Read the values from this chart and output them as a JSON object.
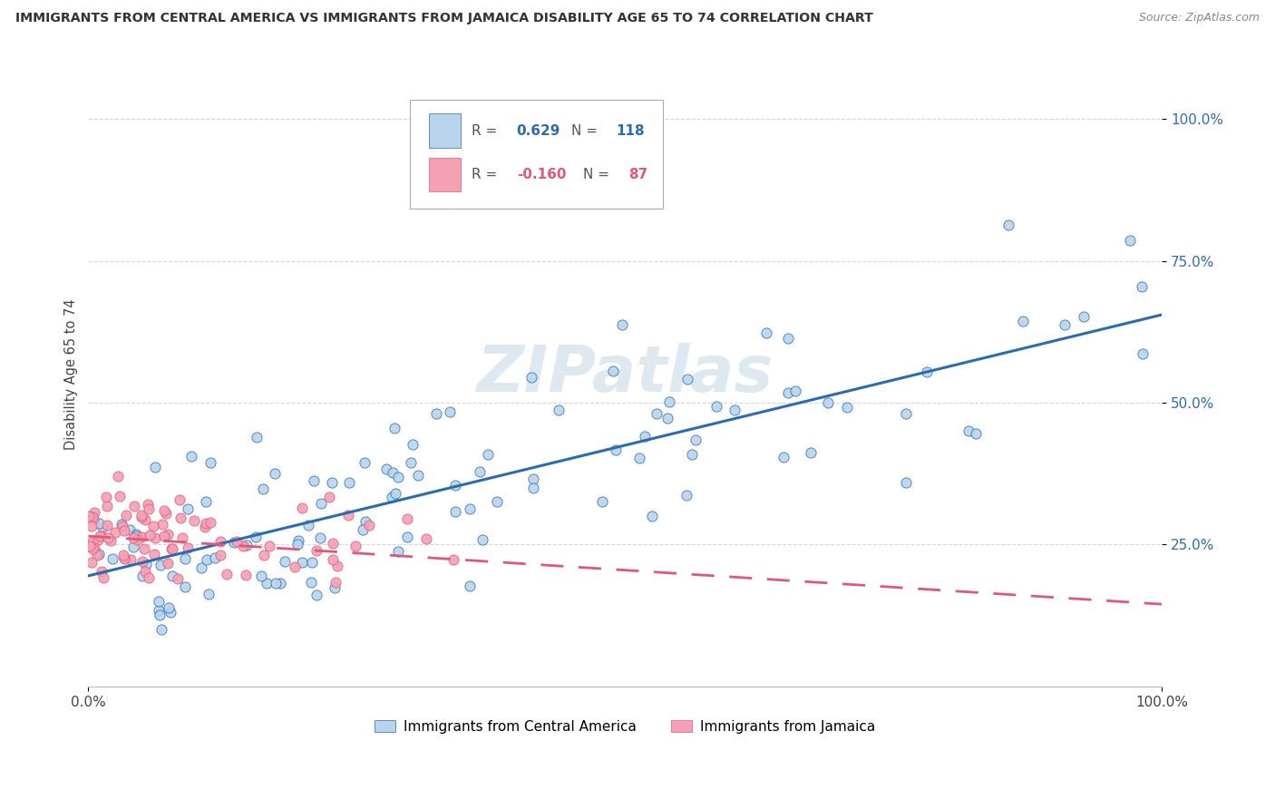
{
  "title": "IMMIGRANTS FROM CENTRAL AMERICA VS IMMIGRANTS FROM JAMAICA DISABILITY AGE 65 TO 74 CORRELATION CHART",
  "source": "Source: ZipAtlas.com",
  "ylabel": "Disability Age 65 to 74",
  "scatter_color_blue": "#b8d4ed",
  "scatter_color_pink": "#f4a0b5",
  "line_color_blue": "#2b6cb0",
  "line_color_pink": "#e05878",
  "watermark_color": "#dde8f0",
  "background_color": "#ffffff",
  "grid_color": "#d0d8e0",
  "xlim": [
    0.0,
    1.0
  ],
  "ylim": [
    0.0,
    1.1
  ],
  "y_axis_pct_values": [
    0.25,
    0.5,
    0.75,
    1.0
  ],
  "y_axis_pct_labels": [
    "25.0%",
    "50.0%",
    "75.0%",
    "100.0%"
  ],
  "legend_label_blue": "Immigrants from Central America",
  "legend_label_pink": "Immigrants from Jamaica",
  "legend_R_blue": "0.629",
  "legend_N_blue": "118",
  "legend_R_pink": "-0.160",
  "legend_N_pink": "87",
  "legend_R_color_blue": "#2b6cb0",
  "legend_R_color_pink": "#e05878",
  "blue_line_y0": 0.195,
  "blue_line_y1": 0.655,
  "pink_line_y0": 0.265,
  "pink_line_y1": 0.145,
  "blue_seed": 77,
  "pink_seed": 42
}
